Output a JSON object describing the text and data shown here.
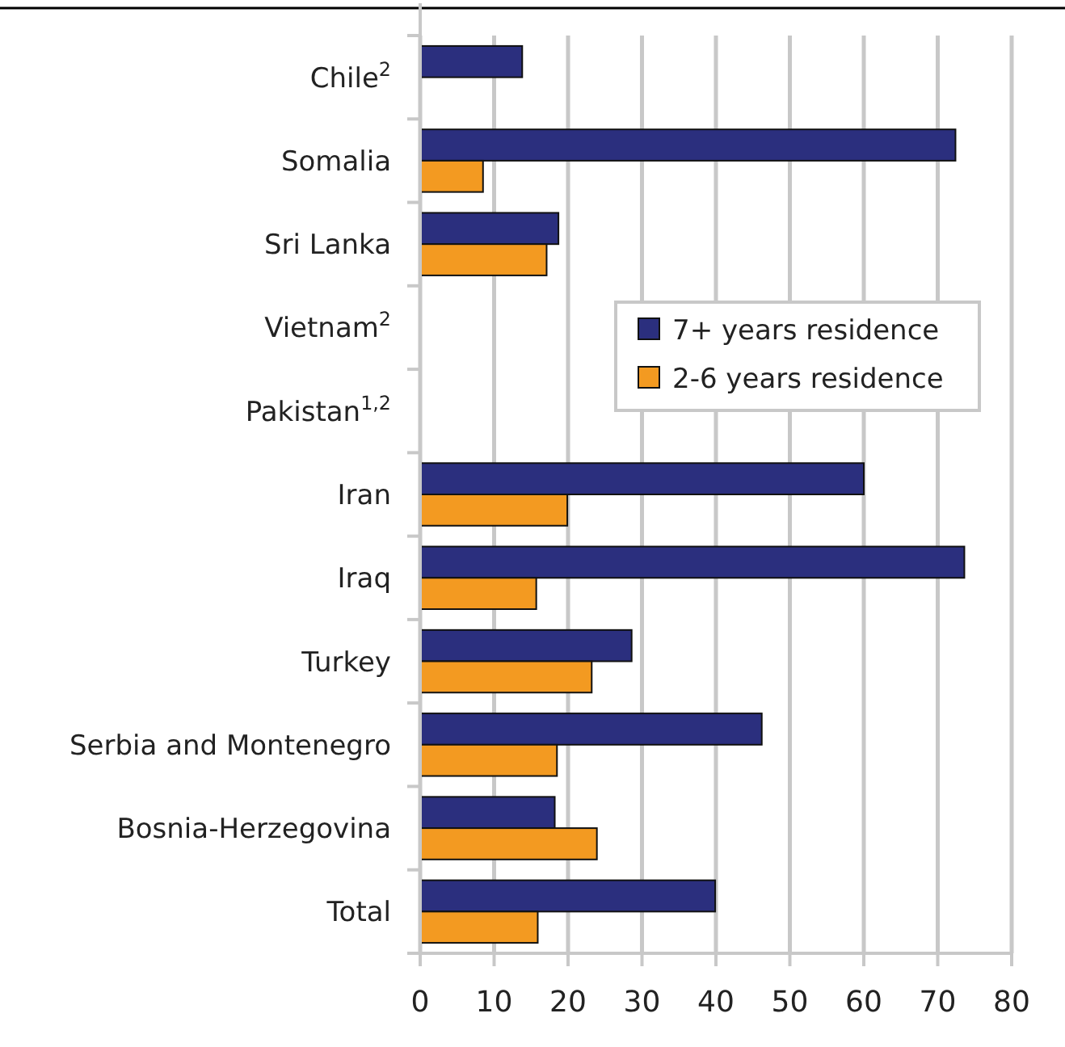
{
  "chart_data": {
    "type": "bar",
    "orientation": "horizontal",
    "categories": [
      "Chile$^{2}$",
      "Somalia",
      "Sri Lanka",
      "Vietnam$^{2}$",
      "Pakistan$^{1,2}$",
      "Iran",
      "Iraq",
      "Turkey",
      "Serbia and Montenegro",
      "Bosnia-Herzegovina",
      "Total"
    ],
    "series": [
      {
        "name": "7+ years residence",
        "color": "#2b2f7e",
        "values": [
          13.8,
          72.4,
          18.7,
          null,
          null,
          60.0,
          73.6,
          28.6,
          46.2,
          18.2,
          39.9
        ]
      },
      {
        "name": "2-6 years residence",
        "color": "#f39a21",
        "values": [
          null,
          8.5,
          17.1,
          null,
          null,
          19.9,
          15.7,
          23.2,
          18.5,
          23.9,
          15.9
        ]
      }
    ],
    "xlim": [
      0,
      80
    ],
    "xticks": [
      0,
      10,
      20,
      30,
      40,
      50,
      60,
      70,
      80
    ],
    "grid": "x",
    "legend": "right"
  }
}
